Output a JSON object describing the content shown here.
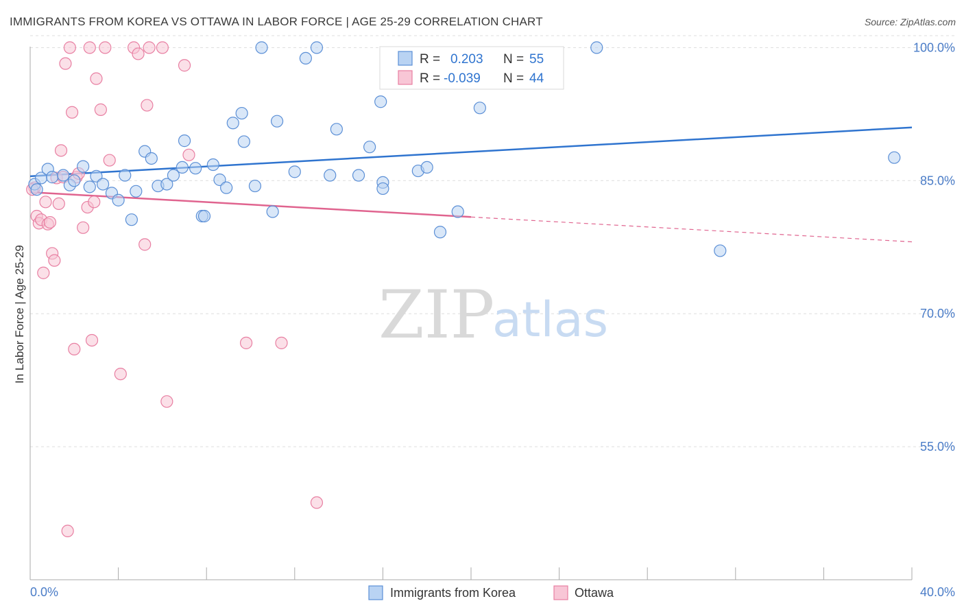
{
  "header": {
    "title": "IMMIGRANTS FROM KOREA VS OTTAWA IN LABOR FORCE | AGE 25-29 CORRELATION CHART",
    "source": "Source: ZipAtlas.com"
  },
  "watermark": {
    "zip": "ZIP",
    "atlas": "atlas"
  },
  "stats_legend": [
    {
      "r_label": "R =",
      "r_value": "0.203",
      "n_label": "N =",
      "n_value": "55"
    },
    {
      "r_label": "R =",
      "r_value": "-0.039",
      "n_label": "N =",
      "n_value": "44"
    }
  ],
  "bottom_legend": [
    {
      "label": "Immigrants from Korea"
    },
    {
      "label": "Ottawa"
    }
  ],
  "colors": {
    "korea_fill": "#b9d3f3",
    "korea_stroke": "#5b8fd6",
    "korea_line": "#2f74cf",
    "ottawa_fill": "#f8c6d6",
    "ottawa_stroke": "#e87fa2",
    "ottawa_line": "#e0648f",
    "axis_label": "#4a7cc7",
    "grid": "#dddddd"
  },
  "chart_data": {
    "type": "scatter",
    "title": "IMMIGRANTS FROM KOREA VS OTTAWA IN LABOR FORCE | AGE 25-29 CORRELATION CHART",
    "xlabel": "",
    "ylabel": "In Labor Force | Age 25-29",
    "xlim": [
      0,
      40
    ],
    "ylim": [
      40,
      101.5
    ],
    "x_tick_labels": [
      "0.0%",
      "40.0%"
    ],
    "y_ticks": [
      55,
      70,
      85,
      100
    ],
    "y_tick_labels": [
      "55.0%",
      "70.0%",
      "85.0%",
      "100.0%"
    ],
    "grid": true,
    "legend_position": "top-center",
    "series": [
      {
        "name": "Immigrants from Korea",
        "color": "#5b8fd6",
        "trend": {
          "x": [
            0,
            40
          ],
          "y": [
            85.5,
            91.0
          ],
          "style": "solid"
        },
        "points": [
          [
            0.2,
            84.6
          ],
          [
            0.3,
            84.0
          ],
          [
            0.5,
            85.3
          ],
          [
            0.8,
            86.3
          ],
          [
            1.0,
            85.4
          ],
          [
            1.5,
            85.6
          ],
          [
            1.8,
            84.5
          ],
          [
            2.0,
            85.0
          ],
          [
            2.4,
            86.6
          ],
          [
            2.7,
            84.3
          ],
          [
            3.0,
            85.5
          ],
          [
            3.3,
            84.6
          ],
          [
            3.7,
            83.6
          ],
          [
            4.0,
            82.8
          ],
          [
            4.3,
            85.6
          ],
          [
            4.6,
            80.6
          ],
          [
            4.8,
            83.8
          ],
          [
            5.2,
            88.3
          ],
          [
            5.5,
            87.5
          ],
          [
            5.8,
            84.4
          ],
          [
            6.2,
            84.6
          ],
          [
            6.5,
            85.6
          ],
          [
            6.9,
            86.5
          ],
          [
            7.0,
            89.5
          ],
          [
            7.5,
            86.4
          ],
          [
            7.8,
            81.0
          ],
          [
            7.9,
            81.0
          ],
          [
            8.3,
            86.8
          ],
          [
            8.6,
            85.1
          ],
          [
            8.9,
            84.2
          ],
          [
            9.2,
            91.5
          ],
          [
            9.6,
            92.6
          ],
          [
            9.7,
            89.4
          ],
          [
            10.2,
            84.4
          ],
          [
            10.5,
            100.0
          ],
          [
            11.0,
            81.5
          ],
          [
            11.2,
            91.7
          ],
          [
            12.0,
            86.0
          ],
          [
            12.5,
            98.8
          ],
          [
            13.0,
            100.0
          ],
          [
            13.6,
            85.6
          ],
          [
            13.9,
            90.8
          ],
          [
            14.9,
            85.6
          ],
          [
            15.4,
            88.8
          ],
          [
            15.9,
            93.9
          ],
          [
            16.0,
            84.8
          ],
          [
            16.0,
            84.1
          ],
          [
            17.6,
            86.1
          ],
          [
            18.0,
            86.5
          ],
          [
            18.6,
            79.2
          ],
          [
            19.4,
            81.5
          ],
          [
            20.4,
            93.2
          ],
          [
            25.7,
            100.0
          ],
          [
            31.3,
            77.1
          ],
          [
            39.2,
            87.6
          ]
        ]
      },
      {
        "name": "Ottawa",
        "color": "#e87fa2",
        "trend": {
          "x": [
            0,
            20
          ],
          "y": [
            83.7,
            80.9
          ],
          "style": "solid",
          "dashed_extension": {
            "x": [
              20,
              40
            ],
            "y": [
              80.9,
              78.1
            ]
          }
        },
        "points": [
          [
            0.2,
            84.2
          ],
          [
            0.3,
            81.0
          ],
          [
            0.4,
            80.2
          ],
          [
            0.5,
            80.6
          ],
          [
            0.6,
            74.6
          ],
          [
            0.7,
            82.6
          ],
          [
            0.8,
            80.1
          ],
          [
            0.9,
            80.3
          ],
          [
            1.0,
            76.8
          ],
          [
            1.1,
            76.0
          ],
          [
            1.2,
            85.3
          ],
          [
            1.3,
            82.4
          ],
          [
            1.4,
            88.4
          ],
          [
            1.5,
            85.4
          ],
          [
            1.6,
            98.2
          ],
          [
            1.7,
            45.5
          ],
          [
            1.8,
            100.0
          ],
          [
            1.9,
            92.7
          ],
          [
            2.0,
            66.0
          ],
          [
            2.1,
            85.4
          ],
          [
            2.2,
            85.8
          ],
          [
            2.4,
            79.7
          ],
          [
            2.6,
            82.0
          ],
          [
            2.7,
            100.0
          ],
          [
            2.8,
            67.0
          ],
          [
            2.9,
            82.6
          ],
          [
            3.0,
            96.5
          ],
          [
            3.2,
            93.0
          ],
          [
            3.4,
            100.0
          ],
          [
            3.6,
            87.3
          ],
          [
            4.1,
            63.2
          ],
          [
            4.7,
            100.0
          ],
          [
            4.9,
            99.3
          ],
          [
            5.2,
            77.8
          ],
          [
            5.3,
            93.5
          ],
          [
            5.4,
            100.0
          ],
          [
            6.0,
            100.0
          ],
          [
            6.2,
            60.1
          ],
          [
            7.0,
            98.0
          ],
          [
            7.2,
            87.9
          ],
          [
            9.8,
            66.7
          ],
          [
            11.4,
            66.7
          ],
          [
            13.0,
            48.7
          ],
          [
            0.1,
            84.0
          ]
        ]
      }
    ]
  }
}
